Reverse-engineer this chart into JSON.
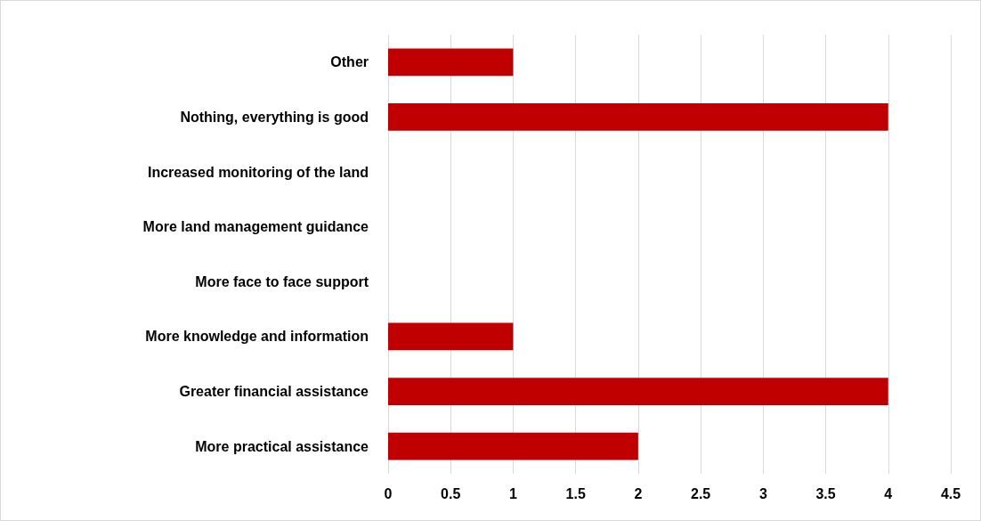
{
  "chart_data": {
    "type": "bar",
    "orientation": "horizontal",
    "categories": [
      "Other",
      "Nothing, everything is good",
      "Increased monitoring of the land",
      "More land management guidance",
      "More face to face support",
      "More knowledge and information",
      "Greater financial assistance",
      "More practical assistance"
    ],
    "values": [
      1,
      4,
      0,
      0,
      0,
      1,
      4,
      2
    ],
    "color": "#c00000",
    "xlim": [
      0,
      4.5
    ],
    "xticks": [
      0,
      0.5,
      1,
      1.5,
      2,
      2.5,
      3,
      3.5,
      4,
      4.5
    ],
    "grid": "x"
  }
}
